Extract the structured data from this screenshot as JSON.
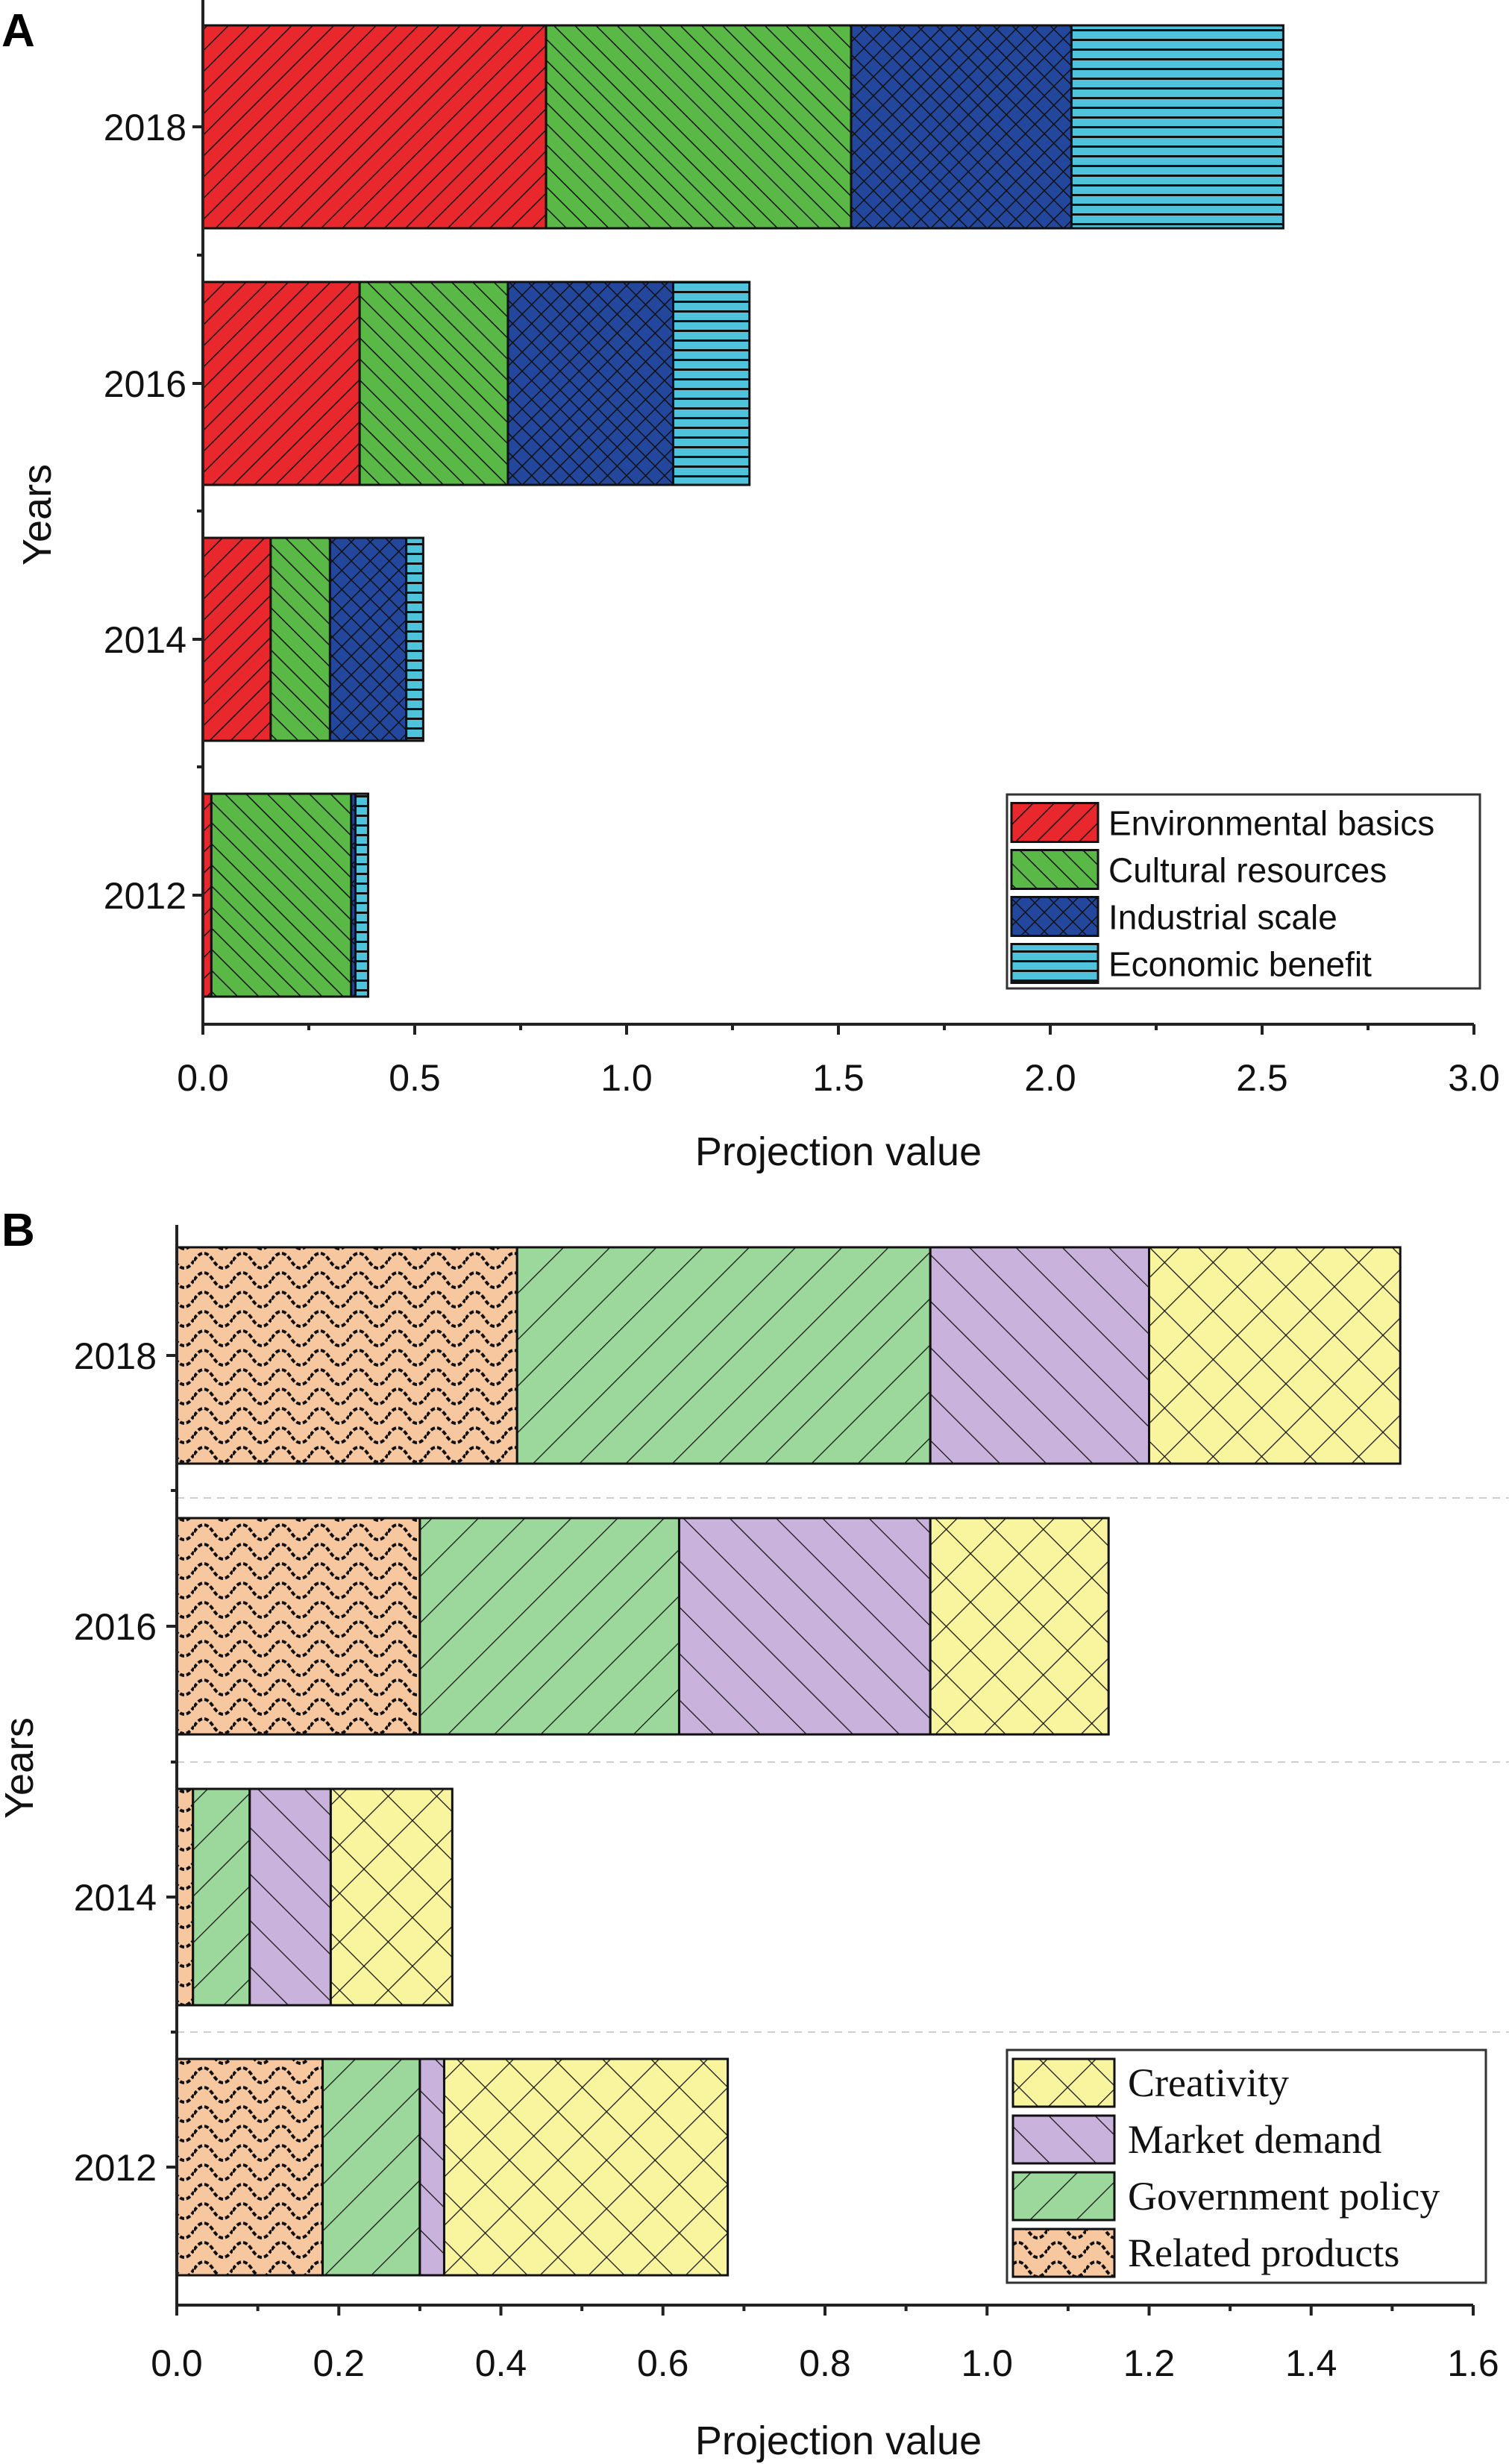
{
  "chart_data": [
    {
      "panel_label": "A",
      "type": "bar",
      "orientation": "horizontal",
      "stacked": true,
      "xlabel": "Projection value",
      "ylabel": "Years",
      "xlim": [
        0,
        3.0
      ],
      "xticks": [
        "0.0",
        "0.5",
        "1.0",
        "1.5",
        "2.0",
        "2.5",
        "3.0"
      ],
      "xtick_values": [
        0,
        0.5,
        1.0,
        1.5,
        2.0,
        2.5,
        3.0
      ],
      "categories": [
        "2012",
        "2014",
        "2016",
        "2018"
      ],
      "legend_position": "bottom-right",
      "series": [
        {
          "name": "Environmental basics",
          "color": "#e8282d",
          "pattern": "diag-right-dense",
          "values": [
            0.02,
            0.16,
            0.37,
            0.81
          ]
        },
        {
          "name": "Cultural resources",
          "color": "#5ab946",
          "pattern": "diag-left-dense",
          "values": [
            0.33,
            0.14,
            0.35,
            0.72
          ]
        },
        {
          "name": "Industrial scale",
          "color": "#24479e",
          "pattern": "crosshatch-dense",
          "values": [
            0.01,
            0.18,
            0.39,
            0.52
          ]
        },
        {
          "name": "Economic benefit",
          "color": "#4fc3dc",
          "pattern": "horizontal-dense",
          "values": [
            0.03,
            0.04,
            0.18,
            0.5
          ]
        }
      ]
    },
    {
      "panel_label": "B",
      "type": "bar",
      "orientation": "horizontal",
      "stacked": true,
      "xlabel": "Projection value",
      "ylabel": "Years",
      "xlim": [
        0,
        1.6
      ],
      "xticks": [
        "0.0",
        "0.2",
        "0.4",
        "0.6",
        "0.8",
        "1.0",
        "1.2",
        "1.4",
        "1.6"
      ],
      "xtick_values": [
        0,
        0.2,
        0.4,
        0.6,
        0.8,
        1.0,
        1.2,
        1.4,
        1.6
      ],
      "categories": [
        "2012",
        "2014",
        "2016",
        "2018"
      ],
      "legend_position": "bottom-right",
      "series": [
        {
          "name": "Related products",
          "color": "#f7c8a0",
          "pattern": "scales",
          "values": [
            0.18,
            0.02,
            0.3,
            0.42
          ]
        },
        {
          "name": "Government policy",
          "color": "#9cd79b",
          "pattern": "diag-right-sparse",
          "values": [
            0.12,
            0.07,
            0.32,
            0.51
          ]
        },
        {
          "name": "Market demand",
          "color": "#c9b3dc",
          "pattern": "diag-left-sparse",
          "values": [
            0.03,
            0.1,
            0.31,
            0.27
          ]
        },
        {
          "name": "Creativity",
          "color": "#f9f59e",
          "pattern": "crosshatch-sparse",
          "values": [
            0.35,
            0.15,
            0.22,
            0.31
          ]
        }
      ],
      "legend_order": [
        "Creativity",
        "Market demand",
        "Government policy",
        "Related products"
      ]
    }
  ]
}
